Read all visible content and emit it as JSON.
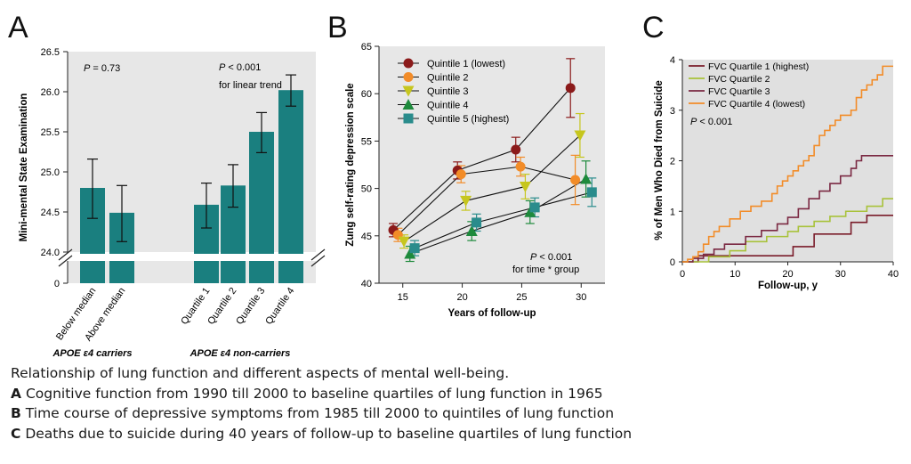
{
  "chart_data": [
    {
      "panel": "A",
      "type": "bar",
      "title": "",
      "ylabel": "Mini-mental State Examination",
      "ylim": [
        24.0,
        26.5
      ],
      "yticks": [
        "0",
        "24.0",
        "24.5",
        "25.0",
        "25.5",
        "26.0",
        "26.5"
      ],
      "axis_break": true,
      "bar_color": "#1a7f7f",
      "groups": [
        {
          "label": "APOE ε4 carriers",
          "pvalue": "P = 0.73",
          "pvalue_note": "",
          "categories": [
            "Below median",
            "Above median"
          ],
          "values": [
            24.8,
            24.49
          ],
          "err_low": [
            24.42,
            24.13
          ],
          "err_high": [
            25.16,
            24.83
          ]
        },
        {
          "label": "APOE ε4 non-carriers",
          "pvalue": "P < 0.001",
          "pvalue_note": "for linear trend",
          "categories": [
            "Quartile 1",
            "Quartile 2",
            "Quartile 3",
            "Quartile 4"
          ],
          "values": [
            24.59,
            24.83,
            25.5,
            26.02
          ],
          "err_low": [
            24.3,
            24.56,
            25.24,
            25.82
          ],
          "err_high": [
            24.86,
            25.09,
            25.74,
            26.21
          ]
        }
      ]
    },
    {
      "panel": "B",
      "type": "line",
      "xlabel": "Years of follow-up",
      "ylabel": "Zung self-rating depression scale",
      "xlim": [
        13,
        32
      ],
      "ylim": [
        40,
        65
      ],
      "xticks": [
        15,
        20,
        25,
        30
      ],
      "yticks": [
        40,
        45,
        50,
        55,
        60,
        65
      ],
      "annotation": "P < 0.001",
      "annotation_note": "for time * group",
      "series": [
        {
          "name": "Quintile 1 (lowest)",
          "color": "#8b1a1a",
          "marker": "circle",
          "x": [
            14.2,
            19.6,
            24.5,
            29.1
          ],
          "y": [
            45.6,
            51.9,
            54.1,
            60.6
          ],
          "err": [
            0.7,
            0.9,
            1.3,
            3.1
          ]
        },
        {
          "name": "Quintile 2",
          "color": "#f28c28",
          "marker": "circle",
          "x": [
            14.6,
            19.9,
            24.9,
            29.5
          ],
          "y": [
            45.1,
            51.5,
            52.3,
            50.9
          ],
          "err": [
            0.7,
            0.9,
            1.0,
            2.6
          ]
        },
        {
          "name": "Quintile 3",
          "color": "#c6c61e",
          "marker": "triangle-down",
          "x": [
            15.1,
            20.3,
            25.3,
            29.9
          ],
          "y": [
            44.4,
            48.7,
            50.2,
            55.6
          ],
          "err": [
            0.7,
            1.0,
            1.3,
            2.3
          ]
        },
        {
          "name": "Quintile 4",
          "color": "#1e8a3c",
          "marker": "triangle-up",
          "x": [
            15.6,
            20.8,
            25.7,
            30.4
          ],
          "y": [
            43.1,
            45.5,
            47.5,
            51.0
          ],
          "err": [
            0.8,
            1.0,
            1.2,
            1.9
          ]
        },
        {
          "name": "Quintile 5 (highest)",
          "color": "#2a8c8c",
          "marker": "square",
          "x": [
            16.0,
            21.2,
            26.1,
            30.9
          ],
          "y": [
            43.7,
            46.4,
            48.0,
            49.6
          ],
          "err": [
            0.8,
            0.9,
            1.0,
            1.5
          ]
        }
      ]
    },
    {
      "panel": "C",
      "type": "line",
      "step": true,
      "xlabel": "Follow-up, y",
      "ylabel": "% of Men Who Died from Suicide",
      "xlim": [
        0,
        40
      ],
      "ylim": [
        0,
        4
      ],
      "xticks": [
        0,
        10,
        20,
        30,
        40
      ],
      "yticks": [
        0,
        1,
        2,
        3,
        4
      ],
      "annotation": "P < 0.001",
      "series": [
        {
          "name": "FVC Quartile 1 (highest)",
          "color": "#7a1c2a",
          "x": [
            0,
            3,
            12,
            21,
            25,
            32,
            35,
            40
          ],
          "y": [
            0,
            0.12,
            0.12,
            0.3,
            0.55,
            0.78,
            0.92,
            0.92
          ]
        },
        {
          "name": "FVC Quartile 2",
          "color": "#a8c23a",
          "x": [
            0,
            5,
            9,
            12,
            16,
            20,
            22,
            25,
            28,
            31,
            35,
            38,
            40
          ],
          "y": [
            0,
            0.1,
            0.22,
            0.4,
            0.5,
            0.6,
            0.7,
            0.8,
            0.9,
            1.0,
            1.1,
            1.25,
            1.25
          ]
        },
        {
          "name": "FVC Quartile 3",
          "color": "#7a2842",
          "x": [
            0,
            2,
            4,
            6,
            8,
            12,
            15,
            18,
            20,
            22,
            24,
            26,
            28,
            30,
            32,
            33,
            34,
            40
          ],
          "y": [
            0,
            0.07,
            0.15,
            0.25,
            0.35,
            0.5,
            0.62,
            0.75,
            0.88,
            1.05,
            1.25,
            1.4,
            1.55,
            1.7,
            1.85,
            2.0,
            2.1,
            2.1
          ]
        },
        {
          "name": "FVC Quartile 4 (lowest)",
          "color": "#f28c28",
          "x": [
            0,
            1,
            2,
            3,
            4,
            5,
            6,
            7,
            9,
            11,
            13,
            15,
            17,
            18,
            19,
            20,
            21,
            22,
            23,
            24,
            25,
            26,
            27,
            28,
            29,
            30,
            32,
            33,
            34,
            35,
            36,
            37,
            38,
            40
          ],
          "y": [
            0,
            0.05,
            0.1,
            0.2,
            0.35,
            0.5,
            0.6,
            0.7,
            0.85,
            1.0,
            1.1,
            1.2,
            1.35,
            1.5,
            1.6,
            1.7,
            1.8,
            1.9,
            2.0,
            2.1,
            2.3,
            2.5,
            2.6,
            2.7,
            2.8,
            2.9,
            3.0,
            3.25,
            3.4,
            3.5,
            3.6,
            3.7,
            3.87,
            3.87
          ]
        }
      ]
    }
  ],
  "caption": {
    "intro": "Relationship of lung function and different aspects of mental well-being.",
    "items": [
      {
        "letter": "A",
        "text": "Cognitive function from 1990 till 2000 to baseline quartiles of lung function in 1965"
      },
      {
        "letter": "B",
        "text": "Time course of depressive symptoms from 1985 till 2000 to quintiles of lung function"
      },
      {
        "letter": "C",
        "text": "Deaths due to suicide during 40 years of follow-up to baseline quartiles of lung function"
      }
    ]
  }
}
